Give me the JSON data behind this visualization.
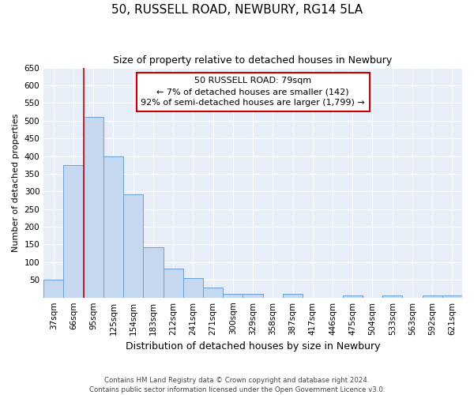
{
  "title": "50, RUSSELL ROAD, NEWBURY, RG14 5LA",
  "subtitle": "Size of property relative to detached houses in Newbury",
  "xlabel": "Distribution of detached houses by size in Newbury",
  "ylabel": "Number of detached properties",
  "categories": [
    "37sqm",
    "66sqm",
    "95sqm",
    "125sqm",
    "154sqm",
    "183sqm",
    "212sqm",
    "241sqm",
    "271sqm",
    "300sqm",
    "329sqm",
    "358sqm",
    "387sqm",
    "417sqm",
    "446sqm",
    "475sqm",
    "504sqm",
    "533sqm",
    "563sqm",
    "592sqm",
    "621sqm"
  ],
  "values": [
    50,
    375,
    510,
    398,
    292,
    143,
    83,
    55,
    29,
    11,
    11,
    0,
    11,
    0,
    0,
    5,
    0,
    5,
    0,
    5,
    5
  ],
  "bar_color": "#c5d8f0",
  "bar_edge_color": "#6a9fd8",
  "annotation_text_line1": "50 RUSSELL ROAD: 79sqm",
  "annotation_text_line2": "← 7% of detached houses are smaller (142)",
  "annotation_text_line3": "92% of semi-detached houses are larger (1,799) →",
  "annotation_box_facecolor": "#ffffff",
  "annotation_box_edgecolor": "#cc0000",
  "red_line_x": 1.5,
  "ylim": [
    0,
    650
  ],
  "yticks": [
    0,
    50,
    100,
    150,
    200,
    250,
    300,
    350,
    400,
    450,
    500,
    550,
    600,
    650
  ],
  "plot_bg_color": "#e8eef8",
  "grid_color": "#ffffff",
  "title_fontsize": 11,
  "subtitle_fontsize": 9,
  "xlabel_fontsize": 9,
  "ylabel_fontsize": 8,
  "tick_fontsize": 7.5,
  "footer_line1": "Contains HM Land Registry data © Crown copyright and database right 2024.",
  "footer_line2": "Contains public sector information licensed under the Open Government Licence v3.0."
}
